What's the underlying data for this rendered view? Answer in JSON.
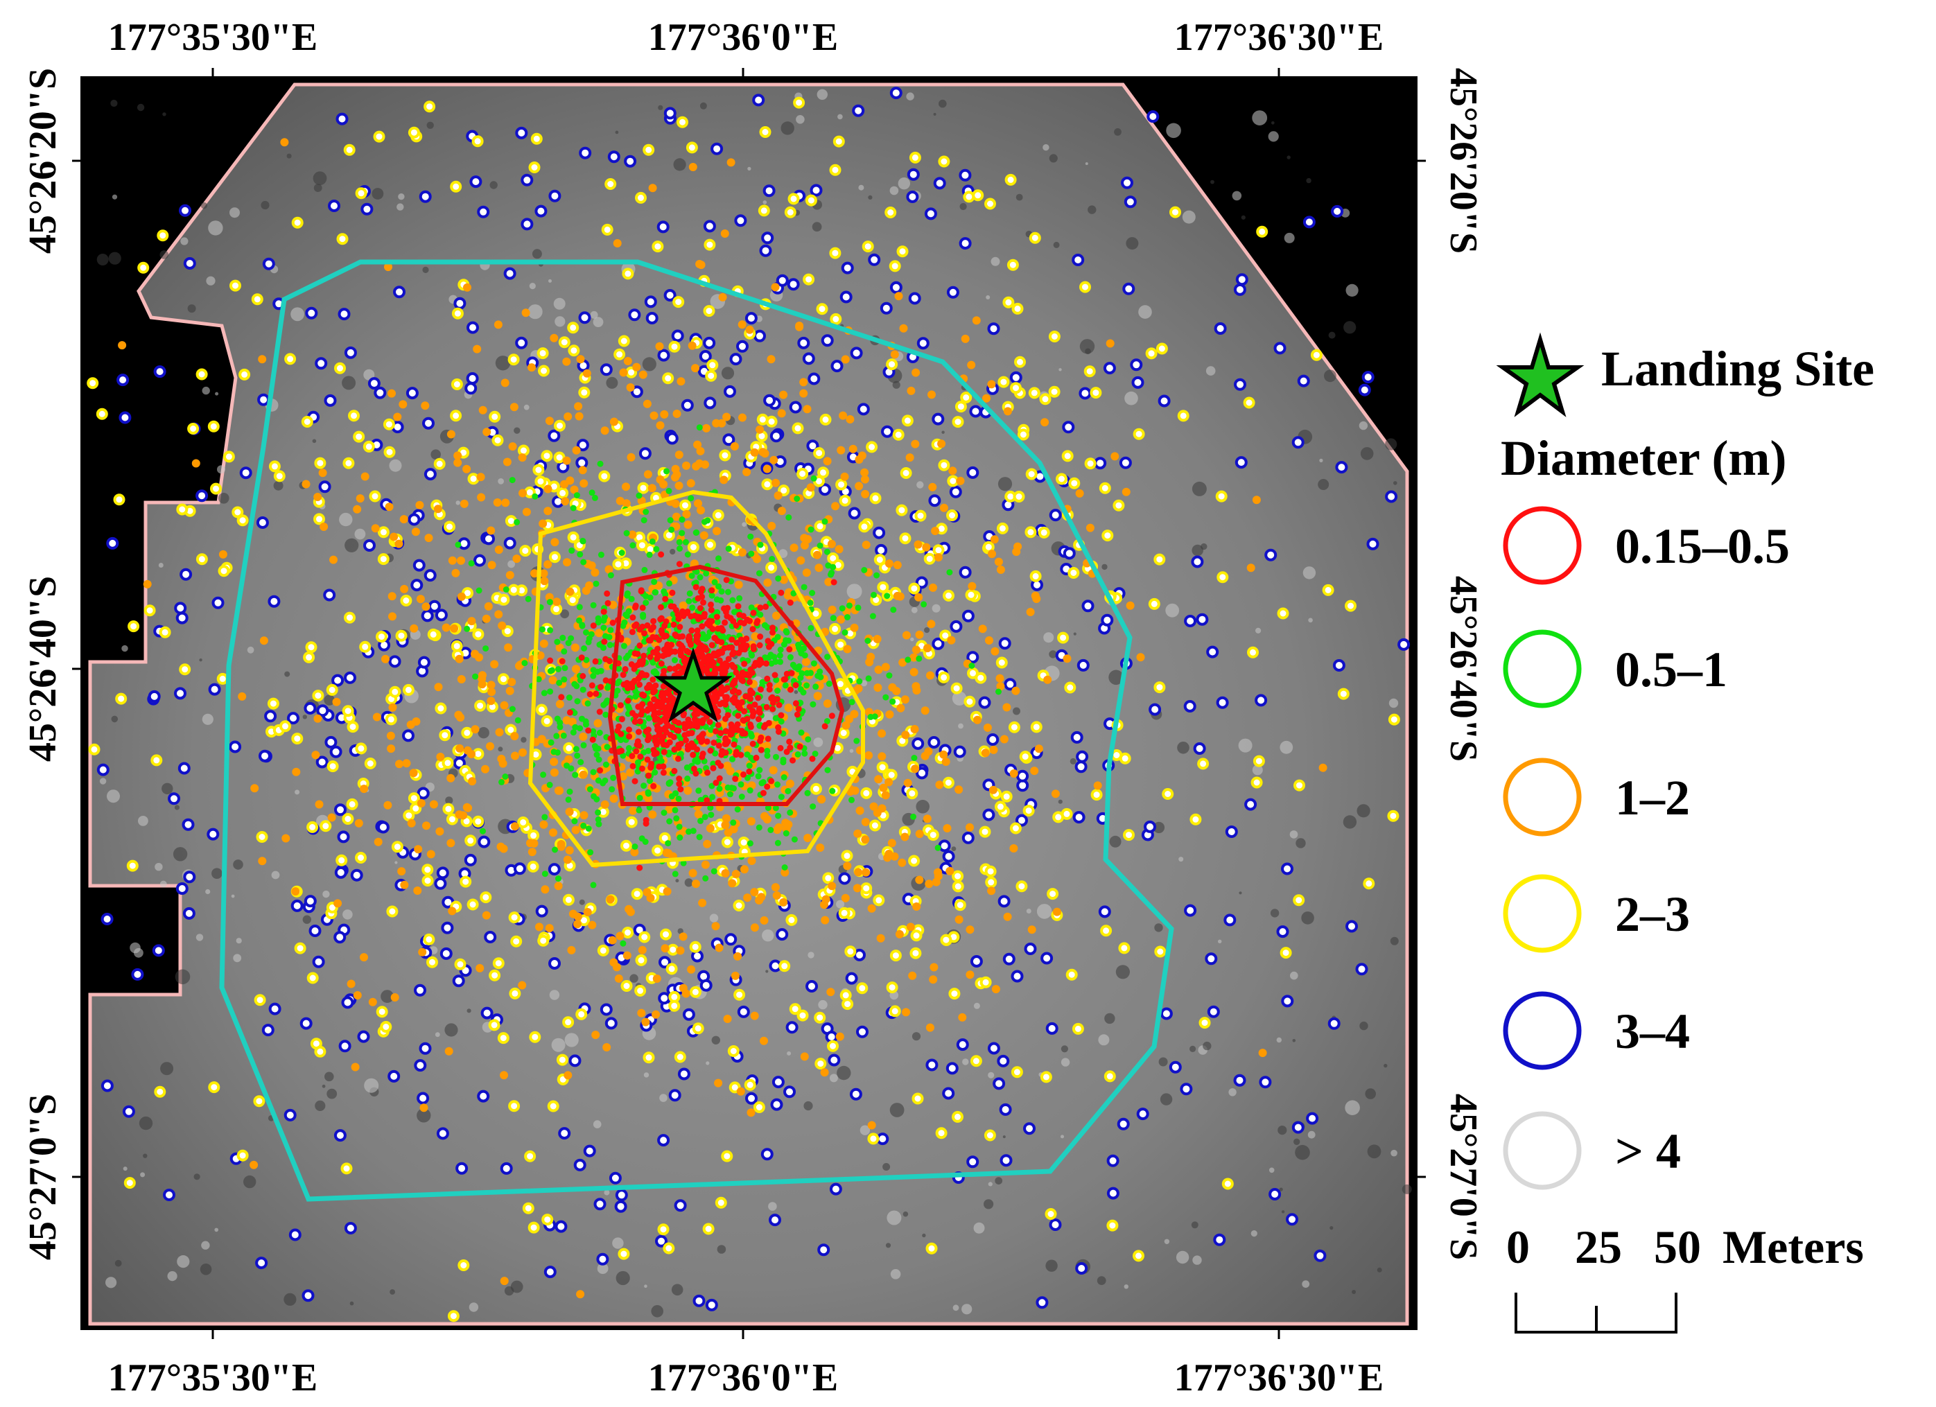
{
  "map": {
    "top_ticks": [
      "177°35'30\"E",
      "177°36'0\"E",
      "177°36'30\"E"
    ],
    "bottom_ticks": [
      "177°35'30\"E",
      "177°36'0\"E",
      "177°36'30\"E"
    ],
    "left_ticks": [
      "45°26'20\"S",
      "45°26'40\"S",
      "45°27'0\"S"
    ],
    "right_ticks": [
      "45°26'20\"S",
      "45°26'40\"S",
      "45°27'0\"S"
    ]
  },
  "legend": {
    "landing_site_label": "Landing Site",
    "diameter_title": "Diameter (m)",
    "classes": [
      {
        "label": "0.15–0.5",
        "color": "#ff1010"
      },
      {
        "label": "0.5–1",
        "color": "#10e010"
      },
      {
        "label": "1–2",
        "color": "#ff9a00"
      },
      {
        "label": "2–3",
        "color": "#ffee00"
      },
      {
        "label": "3–4",
        "color": "#1010c8"
      },
      {
        "label": "> 4",
        "color": "#d8d8d8"
      }
    ],
    "scale_label": "0 25 50 Meters",
    "scale_ticks": [
      "0",
      "25",
      "50",
      "Meters"
    ]
  },
  "colors": {
    "boundary_pink": "#f6b8b8",
    "outer_ring": "#20d0c0",
    "middle_ring": "#ffe000",
    "inner_ring": "#e01010",
    "star_fill": "#20c020"
  }
}
